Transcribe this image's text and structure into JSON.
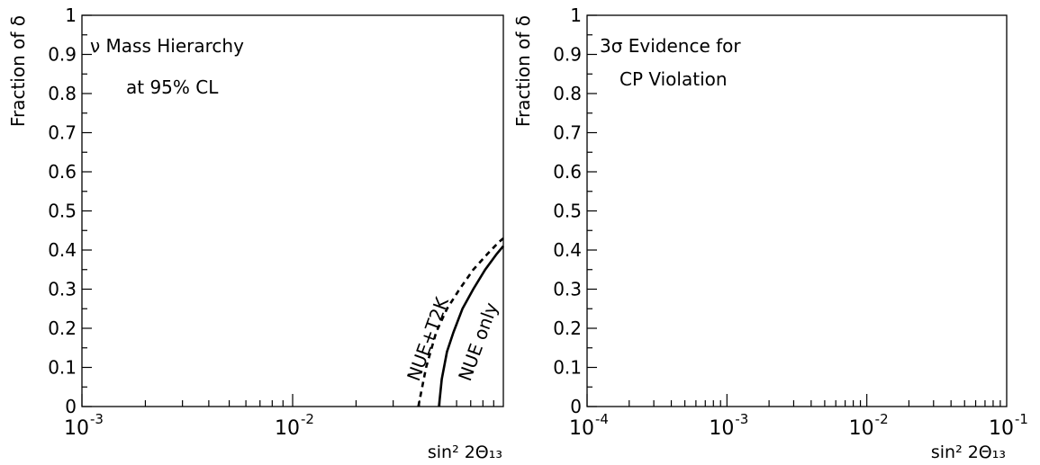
{
  "chart_data": [
    {
      "type": "line",
      "x_scale": "log",
      "xlim": [
        0.001,
        0.1
      ],
      "ylim": [
        0,
        1
      ],
      "ylabel": "Fraction of δ",
      "xlabel": "sin² 2Θ₁₃",
      "x_ticks": [
        {
          "value": 0.001,
          "base": "10",
          "exp": "-3"
        },
        {
          "value": 0.01,
          "base": "10",
          "exp": "-2"
        }
      ],
      "y_ticks": [
        {
          "value": 0,
          "label": "0"
        },
        {
          "value": 0.1,
          "label": "0.1"
        },
        {
          "value": 0.2,
          "label": "0.2"
        },
        {
          "value": 0.3,
          "label": "0.3"
        },
        {
          "value": 0.4,
          "label": "0.4"
        },
        {
          "value": 0.5,
          "label": "0.5"
        },
        {
          "value": 0.6,
          "label": "0.6"
        },
        {
          "value": 0.7,
          "label": "0.7"
        },
        {
          "value": 0.8,
          "label": "0.8"
        },
        {
          "value": 0.9,
          "label": "0.9"
        },
        {
          "value": 1,
          "label": "1"
        }
      ],
      "annotations": [
        "ν Mass Hierarchy",
        "at 95% CL"
      ],
      "series": [
        {
          "name": "NUE only",
          "style": "solid",
          "x": [
            0.0495,
            0.051,
            0.054,
            0.058,
            0.064,
            0.072,
            0.082,
            0.093,
            0.1
          ],
          "y": [
            0.0,
            0.07,
            0.14,
            0.19,
            0.25,
            0.3,
            0.35,
            0.39,
            0.41
          ]
        },
        {
          "name": "NUE+T2K",
          "style": "dashed",
          "x": [
            0.0395,
            0.043,
            0.048,
            0.054,
            0.062,
            0.072,
            0.084,
            0.095,
            0.1
          ],
          "y": [
            0.0,
            0.1,
            0.19,
            0.25,
            0.3,
            0.35,
            0.39,
            0.42,
            0.43
          ]
        }
      ]
    },
    {
      "type": "line",
      "x_scale": "log",
      "xlim": [
        0.0001,
        0.1
      ],
      "ylim": [
        0,
        1
      ],
      "ylabel": "Fraction of δ",
      "xlabel": "sin² 2Θ₁₃",
      "x_ticks": [
        {
          "value": 0.0001,
          "base": "10",
          "exp": "-4"
        },
        {
          "value": 0.001,
          "base": "10",
          "exp": "-3"
        },
        {
          "value": 0.01,
          "base": "10",
          "exp": "-2"
        },
        {
          "value": 0.1,
          "base": "10",
          "exp": "-1"
        }
      ],
      "y_ticks": [
        {
          "value": 0,
          "label": "0"
        },
        {
          "value": 0.1,
          "label": "0.1"
        },
        {
          "value": 0.2,
          "label": "0.2"
        },
        {
          "value": 0.3,
          "label": "0.3"
        },
        {
          "value": 0.4,
          "label": "0.4"
        },
        {
          "value": 0.5,
          "label": "0.5"
        },
        {
          "value": 0.6,
          "label": "0.6"
        },
        {
          "value": 0.7,
          "label": "0.7"
        },
        {
          "value": 0.8,
          "label": "0.8"
        },
        {
          "value": 0.9,
          "label": "0.9"
        },
        {
          "value": 1,
          "label": "1"
        }
      ],
      "annotations": [
        "3σ Evidence for",
        "CP Violation"
      ],
      "series": []
    }
  ]
}
